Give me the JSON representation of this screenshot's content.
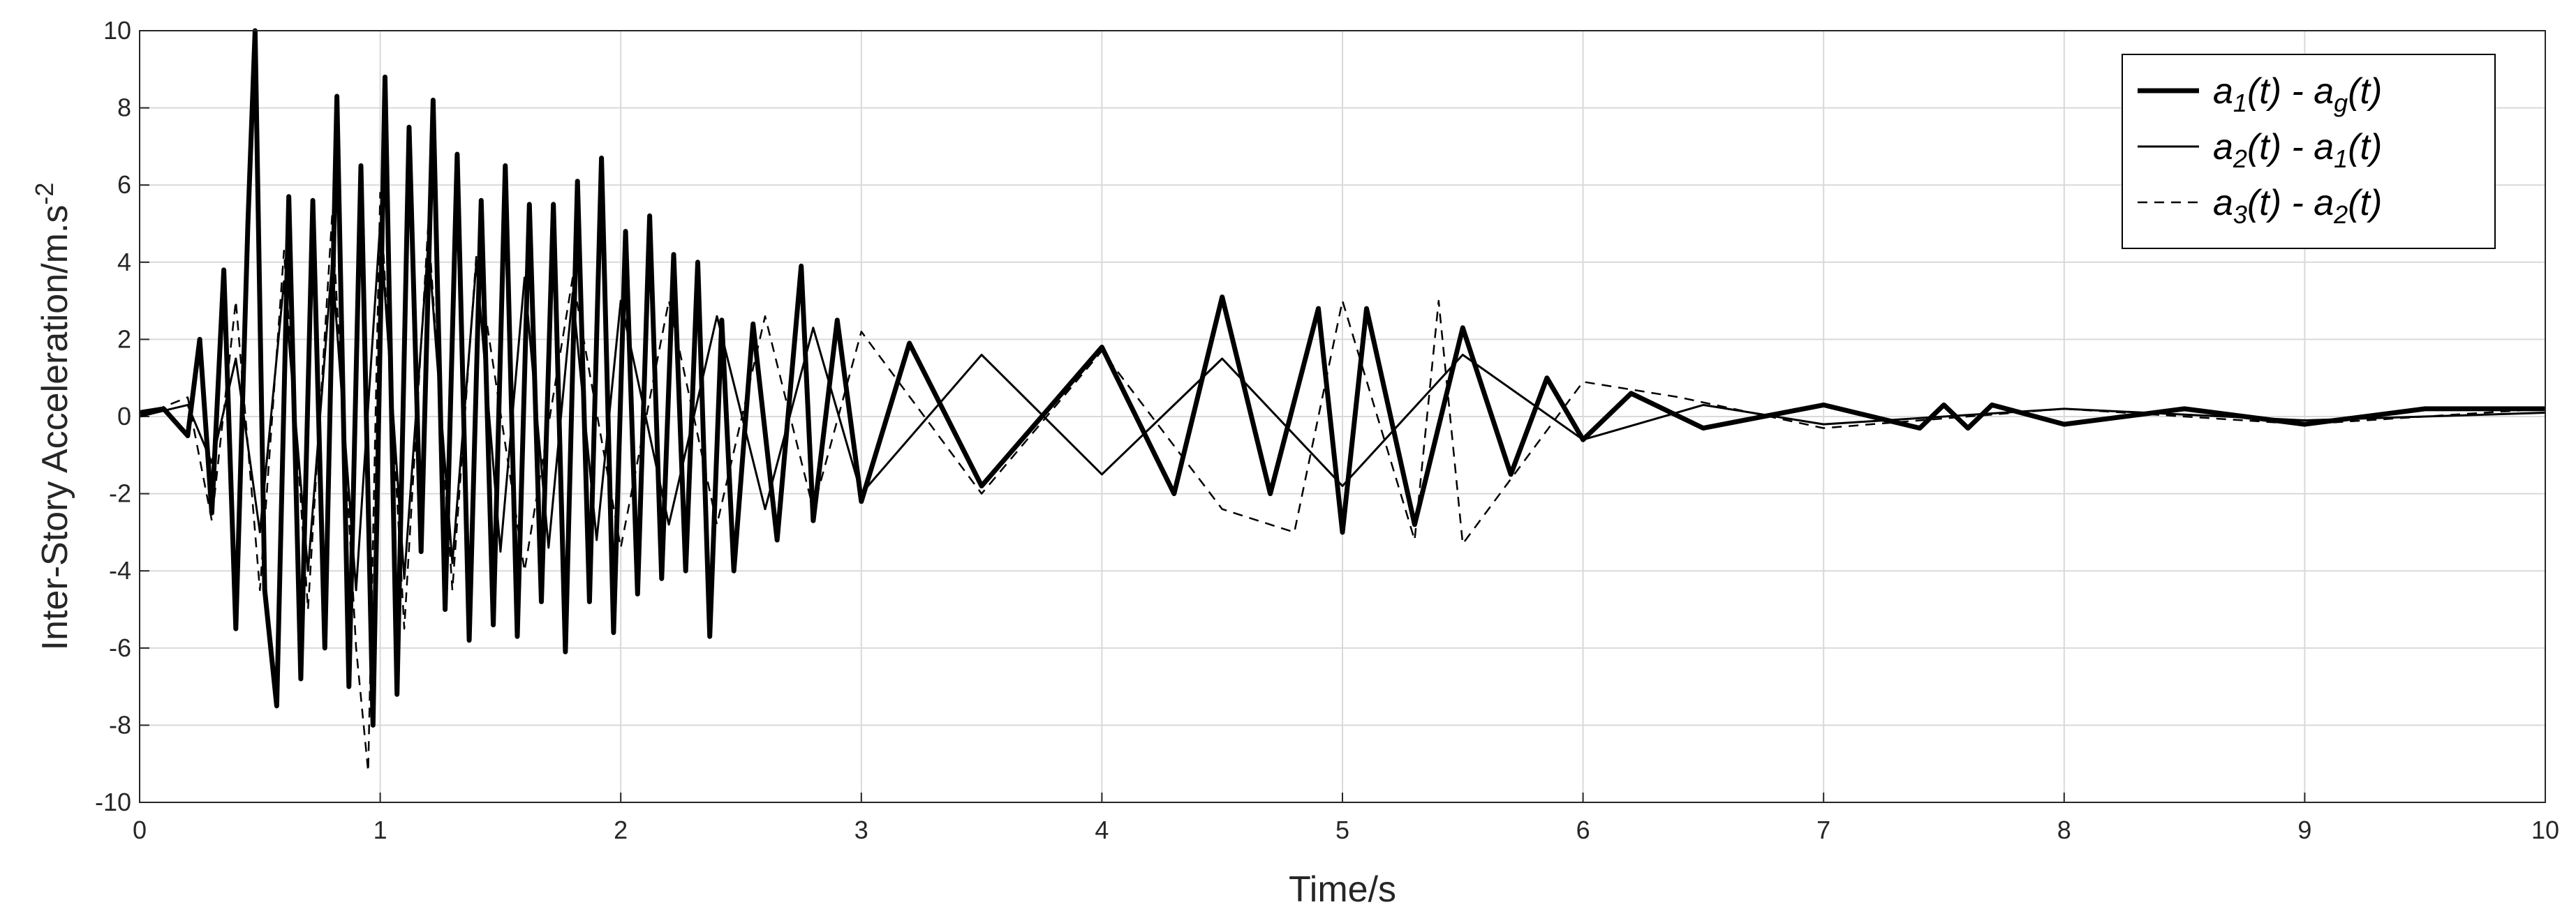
{
  "chart_data": {
    "type": "line",
    "xlabel": "Time/s",
    "ylabel_main": "Inter-Story Acceleration/m.s",
    "ylabel_exponent": "-2",
    "xlim": [
      0,
      10
    ],
    "ylim": [
      -10,
      10
    ],
    "xticks": [
      0,
      1,
      2,
      3,
      4,
      5,
      6,
      7,
      8,
      9,
      10
    ],
    "yticks": [
      -10,
      -8,
      -6,
      -4,
      -2,
      0,
      2,
      4,
      6,
      8,
      10
    ],
    "grid": true,
    "legend_position": "top-right",
    "series": [
      {
        "name": "a1(t) - ag(t)",
        "legend_parts": [
          [
            "a",
            ""
          ],
          [
            "1",
            "sub"
          ],
          [
            "(t) - a",
            ""
          ],
          [
            "g",
            "sub"
          ],
          [
            "(t)",
            ""
          ]
        ],
        "style": "thick-solid",
        "x": [
          0.0,
          0.1,
          0.2,
          0.25,
          0.3,
          0.35,
          0.4,
          0.45,
          0.48,
          0.52,
          0.57,
          0.62,
          0.67,
          0.72,
          0.77,
          0.82,
          0.87,
          0.92,
          0.97,
          1.02,
          1.07,
          1.12,
          1.17,
          1.22,
          1.27,
          1.32,
          1.37,
          1.42,
          1.47,
          1.52,
          1.57,
          1.62,
          1.67,
          1.72,
          1.77,
          1.82,
          1.87,
          1.92,
          1.97,
          2.02,
          2.07,
          2.12,
          2.17,
          2.22,
          2.27,
          2.32,
          2.37,
          2.42,
          2.47,
          2.55,
          2.65,
          2.75,
          2.8,
          2.9,
          3.0,
          3.2,
          3.5,
          4.0,
          4.3,
          4.5,
          4.7,
          4.9,
          5.0,
          5.1,
          5.3,
          5.5,
          5.7,
          5.85,
          6.0,
          6.2,
          6.5,
          7.0,
          7.4,
          7.5,
          7.6,
          7.7,
          8.0,
          8.5,
          9.0,
          9.5,
          10.0
        ],
        "y": [
          0.1,
          0.2,
          -0.5,
          2.0,
          -2.5,
          3.8,
          -5.5,
          5.0,
          10.0,
          -4.5,
          -7.5,
          5.7,
          -6.8,
          5.6,
          -6.0,
          8.3,
          -7.0,
          6.5,
          -8.0,
          8.8,
          -7.2,
          7.5,
          -3.5,
          8.2,
          -5.0,
          6.8,
          -5.8,
          5.6,
          -5.4,
          6.5,
          -5.7,
          5.5,
          -4.8,
          5.5,
          -6.1,
          6.1,
          -4.8,
          6.7,
          -5.6,
          4.8,
          -4.6,
          5.2,
          -4.2,
          4.2,
          -4.0,
          4.0,
          -5.7,
          2.5,
          -4.0,
          2.4,
          -3.2,
          3.9,
          -2.7,
          2.5,
          -2.2,
          1.9,
          -1.8,
          1.8,
          -2.0,
          3.1,
          -2.0,
          2.8,
          -3.0,
          2.8,
          -2.8,
          2.3,
          -1.5,
          1.0,
          -0.6,
          0.6,
          -0.3,
          0.3,
          -0.3,
          0.3,
          -0.3,
          0.3,
          -0.2,
          0.2,
          -0.2,
          0.2,
          0.2
        ]
      },
      {
        "name": "a2(t) - a1(t)",
        "legend_parts": [
          [
            "a",
            ""
          ],
          [
            "2",
            "sub"
          ],
          [
            "(t) - a",
            ""
          ],
          [
            "1",
            "sub"
          ],
          [
            "(t)",
            ""
          ]
        ],
        "style": "thin-solid",
        "x": [
          0.0,
          0.2,
          0.3,
          0.4,
          0.5,
          0.6,
          0.7,
          0.8,
          0.9,
          1.0,
          1.1,
          1.2,
          1.3,
          1.4,
          1.5,
          1.6,
          1.7,
          1.8,
          1.9,
          2.0,
          2.2,
          2.4,
          2.6,
          2.8,
          3.0,
          3.5,
          4.0,
          4.5,
          5.0,
          5.5,
          6.0,
          6.5,
          7.0,
          8.0,
          9.0,
          10.0
        ],
        "y": [
          0.0,
          0.3,
          -1.2,
          1.5,
          -3.0,
          3.5,
          -4.0,
          4.0,
          -4.5,
          5.0,
          -4.2,
          4.5,
          -3.8,
          4.0,
          -3.5,
          3.6,
          -3.4,
          3.2,
          -3.2,
          3.0,
          -2.8,
          2.6,
          -2.4,
          2.3,
          -2.0,
          1.6,
          -1.5,
          1.5,
          -1.8,
          1.6,
          -0.6,
          0.3,
          -0.2,
          0.2,
          -0.1,
          0.1
        ]
      },
      {
        "name": "a3(t) - a2(t)",
        "legend_parts": [
          [
            "a",
            ""
          ],
          [
            "3",
            "sub"
          ],
          [
            "(t) - a",
            ""
          ],
          [
            "2",
            "sub"
          ],
          [
            "(t)",
            ""
          ]
        ],
        "style": "thin-dashed",
        "x": [
          0.0,
          0.2,
          0.3,
          0.4,
          0.5,
          0.6,
          0.7,
          0.8,
          0.9,
          0.95,
          1.0,
          1.1,
          1.2,
          1.3,
          1.4,
          1.6,
          1.8,
          2.0,
          2.2,
          2.4,
          2.6,
          2.8,
          3.0,
          3.5,
          4.0,
          4.5,
          4.8,
          5.0,
          5.3,
          5.4,
          5.5,
          6.0,
          6.4,
          7.0,
          8.0,
          9.0,
          10.0
        ],
        "y": [
          0.0,
          0.5,
          -2.7,
          3.0,
          -4.5,
          4.3,
          -5.0,
          5.2,
          -6.0,
          -9.2,
          5.8,
          -5.5,
          5.0,
          -4.5,
          4.2,
          -4.0,
          3.6,
          -3.4,
          3.0,
          -2.8,
          2.6,
          -2.4,
          2.2,
          -2.0,
          1.7,
          -2.4,
          -3.0,
          3.0,
          -3.2,
          3.0,
          -3.3,
          0.9,
          0.5,
          -0.3,
          0.2,
          -0.2,
          0.2
        ]
      }
    ]
  }
}
